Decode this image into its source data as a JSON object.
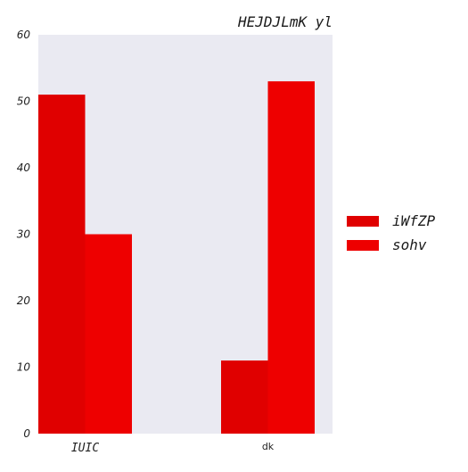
{
  "chart_data": {
    "type": "bar",
    "title": "HEJDJLmK yl",
    "categories": [
      "IUIC",
      "dk"
    ],
    "series": [
      {
        "name": "iWfZP",
        "values": [
          51,
          11
        ],
        "color": "#e00000"
      },
      {
        "name": "sohv",
        "values": [
          30,
          53
        ],
        "color": "#ee0000"
      }
    ],
    "ylim": [
      0,
      60
    ],
    "yticks": [
      "0",
      "10",
      "20",
      "30",
      "40",
      "50",
      "60"
    ],
    "grid": false,
    "plot_background": "#eaeaf2",
    "legend_position": "right"
  }
}
